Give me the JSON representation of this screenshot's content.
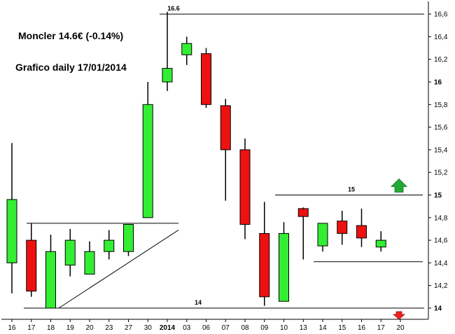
{
  "chart_data": {
    "type": "candlestick",
    "title": "Moncler 14.6€ (-0.14%)",
    "subtitle": "Grafico daily 17/01/2014",
    "ylim": [
      13.86,
      16.7
    ],
    "y_ticks": [
      "14",
      "14,2",
      "14,4",
      "14,6",
      "14,8",
      "15",
      "15,2",
      "15,4",
      "15,6",
      "15,8",
      "16",
      "16,2",
      "16,4",
      "16,6"
    ],
    "y_tick_values": [
      14,
      14.2,
      14.4,
      14.6,
      14.8,
      15,
      15.2,
      15.4,
      15.6,
      15.8,
      16,
      16.2,
      16.4,
      16.6
    ],
    "bold_ticks": [
      "14",
      "15",
      "16"
    ],
    "x_labels": [
      "16",
      "17",
      "18",
      "19",
      "20",
      "23",
      "27",
      "30",
      "2014",
      "03",
      "06",
      "07",
      "08",
      "09",
      "10",
      "13",
      "14",
      "15",
      "16",
      "17",
      "20"
    ],
    "candles": [
      {
        "label": "16",
        "open": 14.4,
        "close": 14.96,
        "high": 15.46,
        "low": 14.13
      },
      {
        "label": "17",
        "open": 14.6,
        "close": 14.15,
        "high": 14.75,
        "low": 14.1
      },
      {
        "label": "18",
        "open": 14.0,
        "close": 14.5,
        "high": 14.65,
        "low": 14.0
      },
      {
        "label": "19",
        "open": 14.38,
        "close": 14.6,
        "high": 14.7,
        "low": 14.28
      },
      {
        "label": "20",
        "open": 14.3,
        "close": 14.5,
        "high": 14.59,
        "low": 14.3
      },
      {
        "label": "23",
        "open": 14.5,
        "close": 14.6,
        "high": 14.69,
        "low": 14.43
      },
      {
        "label": "27",
        "open": 14.5,
        "close": 14.74,
        "high": 14.74,
        "low": 14.46
      },
      {
        "label": "30",
        "open": 14.8,
        "close": 15.8,
        "high": 16.0,
        "low": 14.8
      },
      {
        "label": "2014",
        "open": 16.0,
        "close": 16.12,
        "high": 16.62,
        "low": 15.92
      },
      {
        "label": "03",
        "open": 16.24,
        "close": 16.34,
        "high": 16.4,
        "low": 16.15
      },
      {
        "label": "06",
        "open": 16.25,
        "close": 15.8,
        "high": 16.3,
        "low": 15.77
      },
      {
        "label": "07",
        "open": 15.79,
        "close": 15.4,
        "high": 15.85,
        "low": 14.95
      },
      {
        "label": "08",
        "open": 15.4,
        "close": 14.74,
        "high": 15.5,
        "low": 14.61
      },
      {
        "label": "09",
        "open": 14.66,
        "close": 14.1,
        "high": 14.94,
        "low": 14.02
      },
      {
        "label": "10",
        "open": 14.06,
        "close": 14.66,
        "high": 14.76,
        "low": 14.06
      },
      {
        "label": "13",
        "open": 14.88,
        "close": 14.81,
        "high": 14.89,
        "low": 14.43
      },
      {
        "label": "14",
        "open": 14.55,
        "close": 14.75,
        "high": 14.75,
        "low": 14.5
      },
      {
        "label": "15",
        "open": 14.77,
        "close": 14.66,
        "high": 14.86,
        "low": 14.56
      },
      {
        "label": "16",
        "open": 14.73,
        "close": 14.62,
        "high": 14.88,
        "low": 14.54
      },
      {
        "label": "17",
        "open": 14.54,
        "close": 14.6,
        "high": 14.68,
        "low": 14.5
      }
    ],
    "levels": [
      {
        "value": 16.6,
        "label": "16.6"
      },
      {
        "value": 15.0,
        "label": "15"
      },
      {
        "value": 14.0,
        "label": "14"
      }
    ],
    "colors": {
      "up": "#33ee33",
      "down": "#ee1111",
      "arrow_up": "#22aa33",
      "arrow_down": "#ee2222"
    }
  }
}
